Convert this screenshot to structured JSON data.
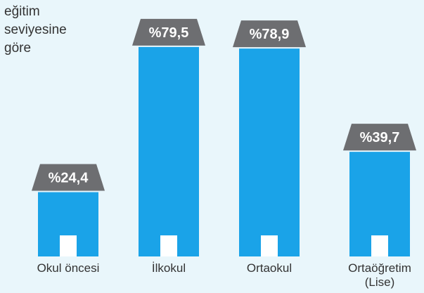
{
  "chart_data": {
    "type": "building-bar",
    "title": "eğitim seviyesine göre",
    "categories": [
      "Okul öncesi",
      "İlkokul",
      "Ortaokul",
      "Ortaöğretim (Lise)"
    ],
    "values": [
      24.4,
      79.5,
      78.9,
      39.7
    ],
    "value_labels": [
      "%24,4",
      "%79,5",
      "%78,9",
      "%39,7"
    ],
    "color": "#1aa3e8",
    "roof_color": "#6d6e71"
  }
}
